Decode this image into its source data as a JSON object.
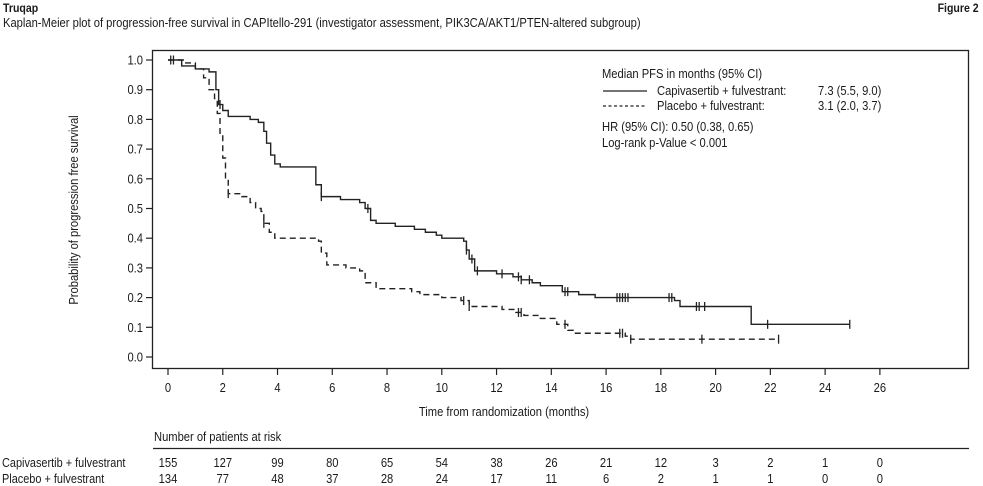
{
  "header": {
    "brand": "Truqap",
    "figure_label": "Figure 2",
    "subtitle": "Kaplan-Meier plot of progression-free survival in CAPItello-291 (investigator assessment, PIK3CA/AKT1/PTEN-altered subgroup)"
  },
  "chart_data": {
    "type": "line",
    "subtype": "kaplan-meier-step",
    "title": "Kaplan-Meier plot of progression-free survival in CAPItello-291 (investigator assessment, PIK3CA/AKT1/PTEN-altered subgroup)",
    "xlabel": "Time from randomization (months)",
    "ylabel": "Probability of progression free survival",
    "xlim": [
      0,
      26
    ],
    "ylim": [
      0,
      1.0
    ],
    "x_ticks": [
      "0",
      "2",
      "4",
      "6",
      "8",
      "10",
      "12",
      "14",
      "16",
      "18",
      "20",
      "22",
      "24",
      "26"
    ],
    "y_ticks": [
      "0.0",
      "0.1",
      "0.2",
      "0.3",
      "0.4",
      "0.5",
      "0.6",
      "0.7",
      "0.8",
      "0.9",
      "1.0"
    ],
    "grid": false,
    "legend": {
      "placement": "top-right",
      "heading": "Median PFS in months (95% CI)",
      "entries": [
        {
          "name": "Capivasertib + fulvestrant:",
          "value": "7.3 (5.5, 9.0)",
          "style": "solid"
        },
        {
          "name": "Placebo + fulvestrant:",
          "value": "3.1 (2.0, 3.7)",
          "style": "dashed"
        }
      ],
      "hr_text": "HR (95% CI): 0.50 (0.38, 0.65)",
      "pvalue_text": "Log-rank p-Value < 0.001"
    },
    "series": [
      {
        "name": "Capivasertib + fulvestrant",
        "style": "solid",
        "x": [
          0,
          0.5,
          1.0,
          1.5,
          1.75,
          1.85,
          2.0,
          2.2,
          3.0,
          3.3,
          3.5,
          3.6,
          3.75,
          3.9,
          4.1,
          5.3,
          5.4,
          5.6,
          6.3,
          7.0,
          7.2,
          7.4,
          7.6,
          8.3,
          9.0,
          9.4,
          9.8,
          10.0,
          10.8,
          10.9,
          11.0,
          11.2,
          12.0,
          12.6,
          12.9,
          13.3,
          13.6,
          14.4,
          15.0,
          15.6,
          18.5,
          18.7,
          21.3,
          24.9
        ],
        "y": [
          1.0,
          0.98,
          0.97,
          0.96,
          0.9,
          0.85,
          0.83,
          0.81,
          0.8,
          0.79,
          0.76,
          0.72,
          0.68,
          0.65,
          0.64,
          0.64,
          0.58,
          0.54,
          0.53,
          0.52,
          0.5,
          0.46,
          0.45,
          0.44,
          0.43,
          0.42,
          0.41,
          0.4,
          0.39,
          0.36,
          0.33,
          0.29,
          0.28,
          0.27,
          0.26,
          0.25,
          0.24,
          0.22,
          0.21,
          0.2,
          0.19,
          0.17,
          0.11,
          0.11
        ],
        "censor_x": [
          0.1,
          1.9,
          5.6,
          7.3,
          10.9,
          11.1,
          11.3,
          12.2,
          12.8,
          12.9,
          13.2,
          14.5,
          14.6,
          16.4,
          16.5,
          16.6,
          16.7,
          16.8,
          18.3,
          18.4,
          19.3,
          19.4,
          19.6,
          21.9,
          24.9
        ]
      },
      {
        "name": "Placebo + fulvestrant",
        "style": "dashed",
        "x": [
          0,
          0.6,
          1.0,
          1.3,
          1.5,
          1.7,
          1.8,
          1.9,
          2.0,
          2.1,
          2.2,
          2.7,
          3.0,
          3.2,
          3.4,
          3.5,
          3.7,
          3.9,
          5.5,
          5.6,
          5.8,
          6.5,
          7.0,
          7.2,
          7.6,
          8.9,
          9.2,
          10.0,
          10.7,
          11.0,
          12.2,
          12.7,
          13.0,
          13.6,
          14.2,
          14.6,
          14.8,
          16.7,
          16.9,
          22.3
        ],
        "y": [
          1.0,
          0.99,
          0.97,
          0.94,
          0.9,
          0.87,
          0.82,
          0.75,
          0.67,
          0.6,
          0.55,
          0.54,
          0.52,
          0.5,
          0.49,
          0.45,
          0.42,
          0.4,
          0.39,
          0.35,
          0.31,
          0.3,
          0.29,
          0.25,
          0.23,
          0.22,
          0.21,
          0.2,
          0.19,
          0.17,
          0.16,
          0.15,
          0.14,
          0.13,
          0.11,
          0.09,
          0.08,
          0.07,
          0.06,
          0.06
        ],
        "censor_x": [
          0.2,
          2.2,
          3.5,
          10.8,
          11.0,
          12.8,
          12.9,
          14.5,
          16.5,
          16.6,
          16.9,
          19.5,
          22.3
        ]
      }
    ],
    "risk_table": {
      "heading": "Number of patients at risk",
      "times": [
        0,
        2,
        4,
        6,
        8,
        10,
        12,
        14,
        16,
        18,
        20,
        22,
        24,
        26
      ],
      "rows": [
        {
          "label": "Capivasertib + fulvestrant",
          "values": [
            "155",
            "127",
            "99",
            "80",
            "65",
            "54",
            "38",
            "26",
            "21",
            "12",
            "3",
            "2",
            "1",
            "0"
          ]
        },
        {
          "label": "Placebo + fulvestrant",
          "values": [
            "134",
            "77",
            "48",
            "37",
            "28",
            "24",
            "17",
            "11",
            "6",
            "2",
            "1",
            "1",
            "0",
            "0"
          ]
        }
      ]
    }
  }
}
